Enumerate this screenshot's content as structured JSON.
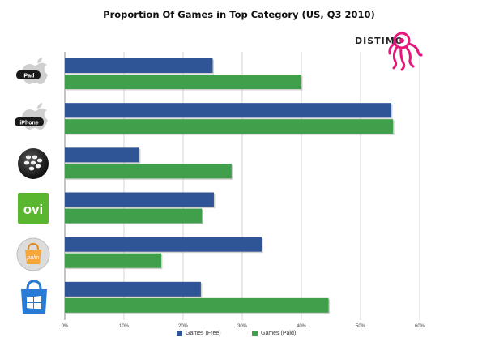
{
  "chart_data": {
    "type": "bar",
    "orientation": "horizontal",
    "title": "Proportion Of Games in Top Category (US, Q3 2010)",
    "categories": [
      "iPad",
      "iPhone",
      "BlackBerry",
      "Ovi",
      "Palm",
      "Windows Phone"
    ],
    "category_icons": [
      "ipad-apple-icon",
      "iphone-apple-icon",
      "blackberry-icon",
      "ovi-icon",
      "palm-icon",
      "windows-phone-icon"
    ],
    "category_icon_text": {
      "ipad": "iPad",
      "iphone": "iPhone",
      "ovi": "ovi",
      "palm": "palm"
    },
    "series": [
      {
        "name": "Games (Free)",
        "values": [
          25.0,
          55.2,
          12.6,
          25.2,
          33.3,
          23.0
        ]
      },
      {
        "name": "Games (Paid)",
        "values": [
          40.0,
          55.5,
          28.2,
          23.2,
          16.3,
          44.6
        ]
      }
    ],
    "x_ticks": [
      "0%",
      "10%",
      "20%",
      "30%",
      "40%",
      "50%",
      "60%"
    ],
    "xlim": [
      0,
      60
    ],
    "grid": true,
    "legend_position": "bottom",
    "colors": {
      "free": "#2f5597",
      "paid": "#3f9f4a",
      "grid": "#c9c9c9",
      "brand": "#e5177b",
      "ovi": "#5ab52f"
    }
  },
  "brand": {
    "text": "DISTIMO"
  }
}
